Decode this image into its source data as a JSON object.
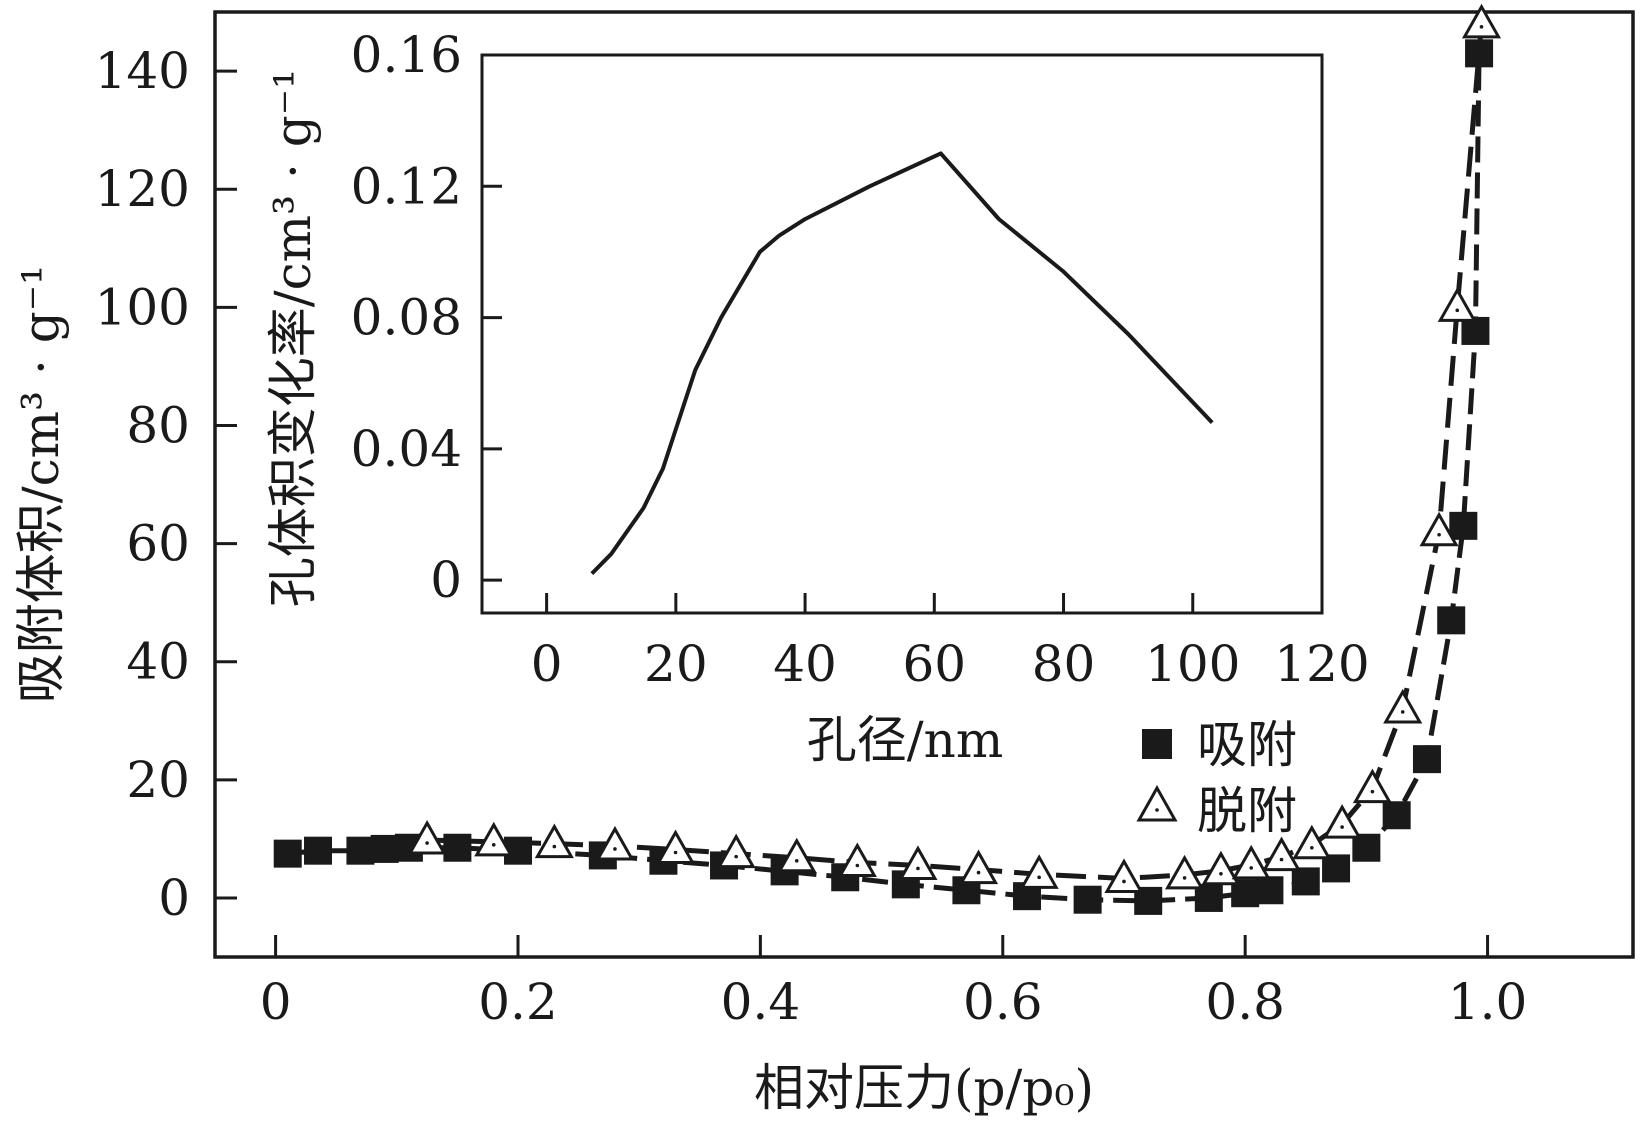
{
  "chart_data": [
    {
      "type": "scatter",
      "xlabel": "相对压力(p/p₀)",
      "ylabel": "吸附体积/cm³ · g⁻¹",
      "xlim": [
        -0.05,
        1.12
      ],
      "ylim": [
        -10,
        150
      ],
      "x_ticks": [
        0,
        0.2,
        0.4,
        0.6,
        0.8,
        1.0
      ],
      "x_tick_labels": [
        "0",
        "0.2",
        "0.4",
        "0.6",
        "0.8",
        "1.0"
      ],
      "y_ticks": [
        0,
        20,
        40,
        60,
        80,
        100,
        120,
        140
      ],
      "y_tick_labels": [
        "0",
        "20",
        "40",
        "60",
        "80",
        "100",
        "120",
        "140"
      ],
      "legend_position": "bottom-right",
      "series": [
        {
          "name": "吸附",
          "marker": "square-filled",
          "color": "#1a1a1a",
          "x": [
            0.01,
            0.035,
            0.07,
            0.09,
            0.11,
            0.15,
            0.2,
            0.27,
            0.32,
            0.37,
            0.42,
            0.47,
            0.52,
            0.57,
            0.62,
            0.67,
            0.72,
            0.77,
            0.8,
            0.82,
            0.85,
            0.875,
            0.9,
            0.925,
            0.95,
            0.97,
            0.98,
            0.99,
            0.993
          ],
          "y": [
            7.5,
            8,
            8,
            8.3,
            8.5,
            8.5,
            8,
            7.2,
            6.3,
            5.5,
            4.5,
            3.5,
            2.3,
            1.3,
            0.3,
            -0.3,
            -0.5,
            0,
            0.8,
            1.3,
            2.8,
            5,
            8.5,
            14,
            23.5,
            47,
            63,
            96,
            143
          ]
        },
        {
          "name": "脱附",
          "marker": "triangle-open",
          "color": "#1a1a1a",
          "x": [
            0.125,
            0.18,
            0.23,
            0.28,
            0.33,
            0.38,
            0.43,
            0.48,
            0.53,
            0.58,
            0.63,
            0.7,
            0.75,
            0.78,
            0.805,
            0.83,
            0.855,
            0.88,
            0.905,
            0.93,
            0.96,
            0.975,
            0.995
          ],
          "y": [
            9.8,
            9.5,
            9.2,
            8.8,
            8.2,
            7.5,
            6.8,
            6,
            5.5,
            4.8,
            4,
            3.3,
            3.9,
            4.6,
            5.6,
            7,
            9,
            12.5,
            18.5,
            32,
            62,
            100,
            148
          ]
        }
      ]
    },
    {
      "type": "line",
      "xlabel": "孔径/nm",
      "ylabel": "孔体积变化率/cm³ · g⁻¹",
      "xlim": [
        -10,
        120
      ],
      "ylim": [
        -0.01,
        0.16
      ],
      "x_ticks": [
        0,
        20,
        40,
        60,
        80,
        100,
        120
      ],
      "x_tick_labels": [
        "0",
        "20",
        "40",
        "60",
        "80",
        "100",
        "120"
      ],
      "y_ticks": [
        0,
        0.04,
        0.08,
        0.12,
        0.16
      ],
      "y_tick_labels": [
        "0",
        "0.04",
        "0.08",
        "0.12",
        "0.16"
      ],
      "series": [
        {
          "color": "#1a1a1a",
          "x": [
            7,
            10,
            15,
            18,
            20,
            23,
            27,
            33,
            36,
            40,
            50,
            61,
            70,
            80,
            90,
            103
          ],
          "y": [
            0.002,
            0.008,
            0.022,
            0.034,
            0.046,
            0.064,
            0.08,
            0.1,
            0.105,
            0.11,
            0.12,
            0.13,
            0.11,
            0.094,
            0.075,
            0.048
          ]
        }
      ]
    }
  ]
}
